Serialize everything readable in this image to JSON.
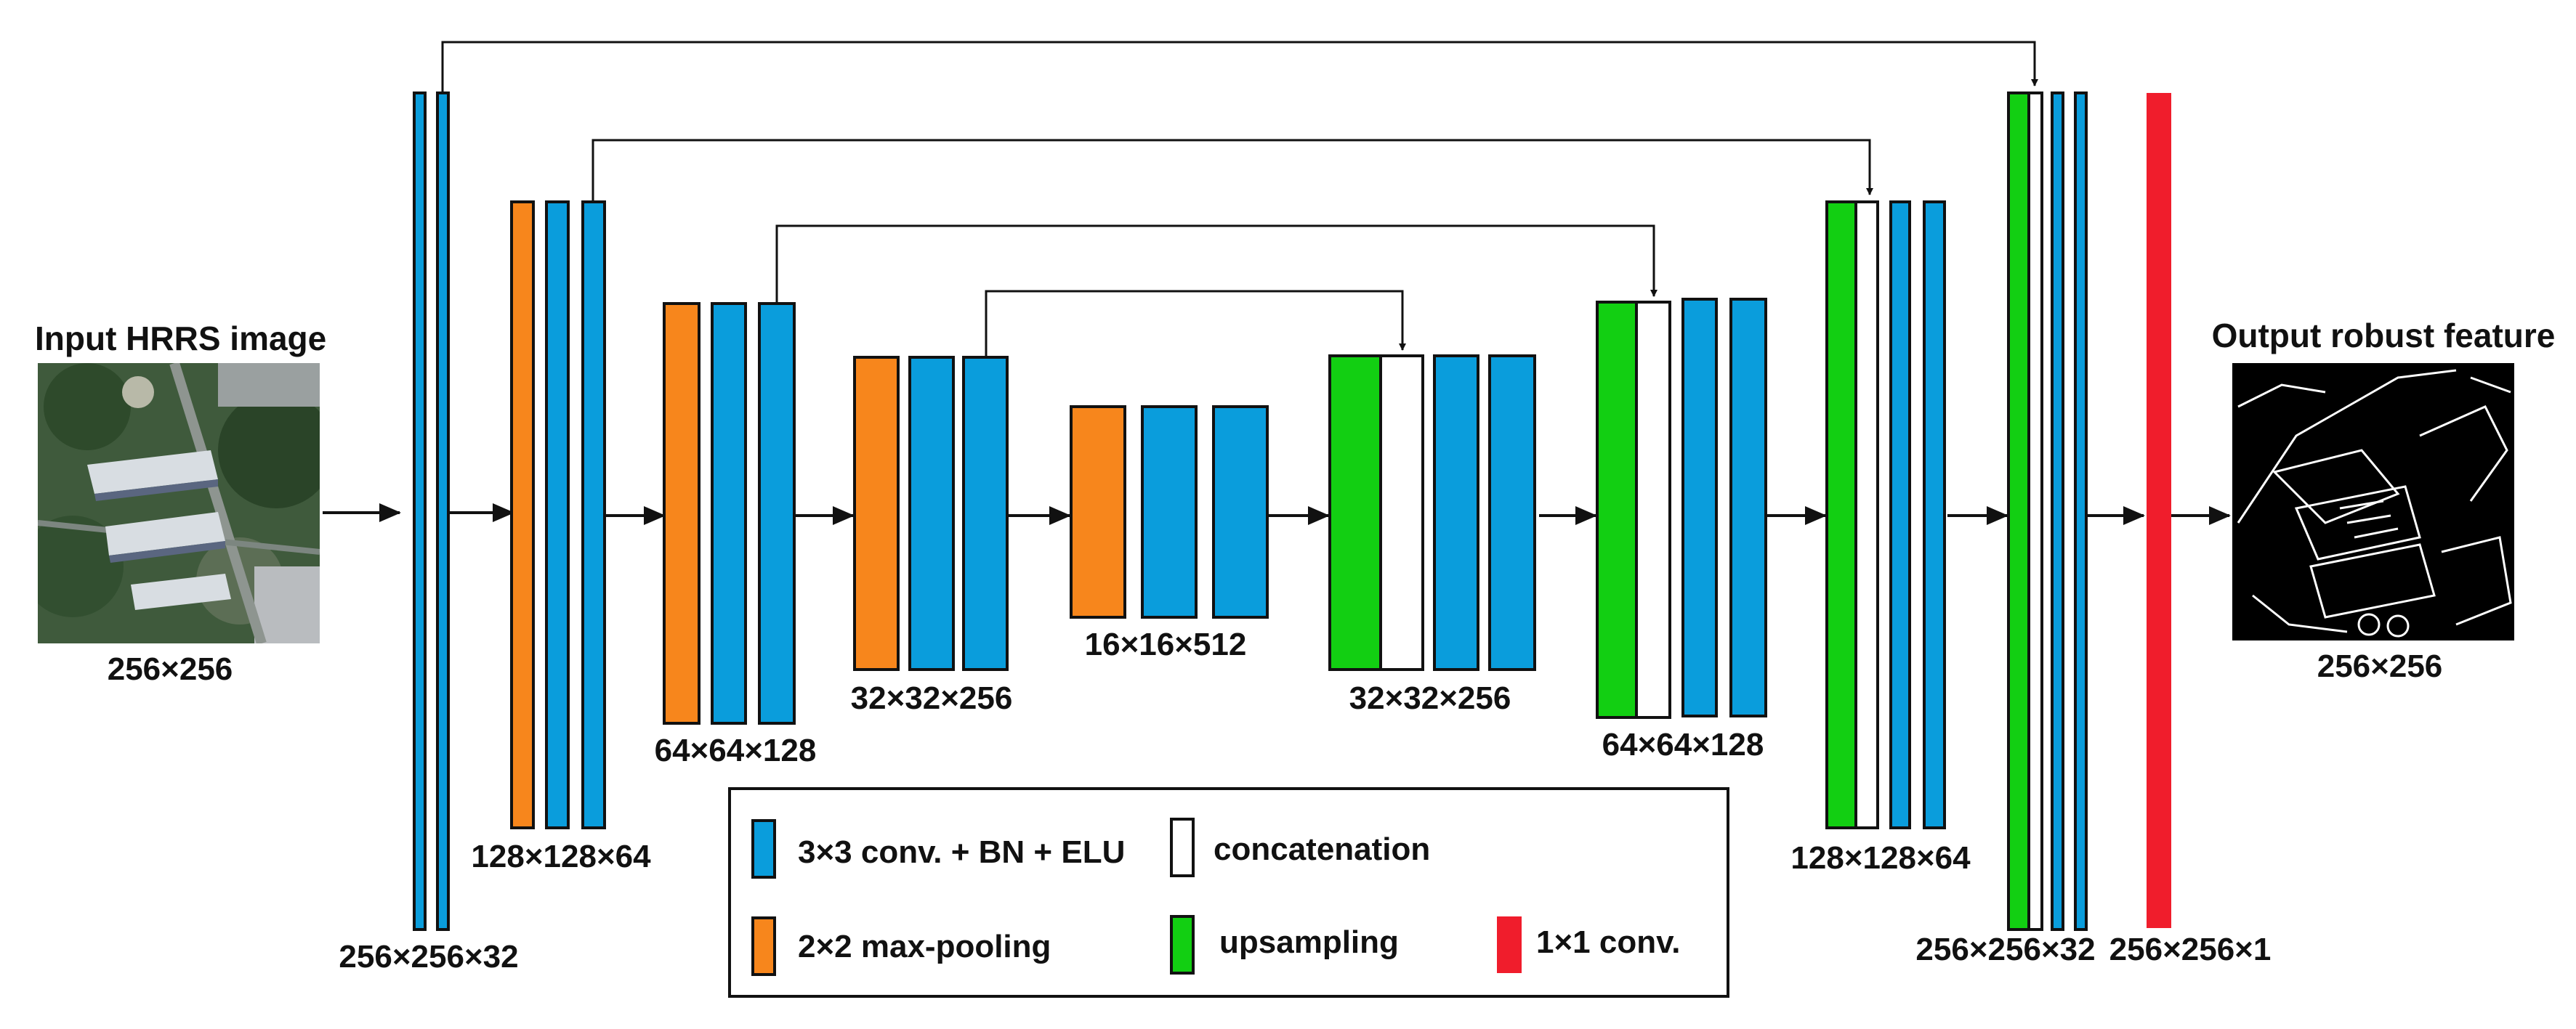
{
  "colors": {
    "conv": "#0a9ddc",
    "pool": "#f7861c",
    "up": "#12cf12",
    "concat": "#ffffff",
    "out": "#f01d2c",
    "line": "#111111"
  },
  "input": {
    "title": "Input HRRS image",
    "size": "256×256",
    "image": "aerial-photo"
  },
  "output": {
    "title": "Output robust feature",
    "size": "256×256",
    "image": "edge-map"
  },
  "stages": [
    {
      "label": "256×256×32"
    },
    {
      "label": "128×128×64"
    },
    {
      "label": "64×64×128"
    },
    {
      "label": "32×32×256"
    },
    {
      "label": "16×16×512"
    },
    {
      "label": "32×32×256"
    },
    {
      "label": "64×64×128"
    },
    {
      "label": "128×128×64"
    },
    {
      "label": "256×256×32"
    },
    {
      "label": "256×256×1"
    }
  ],
  "legend": {
    "conv": "3×3 conv. + BN + ELU",
    "concat": "concatenation",
    "pool": "2×2 max-pooling",
    "up": "upsampling",
    "out": "1×1 conv."
  }
}
